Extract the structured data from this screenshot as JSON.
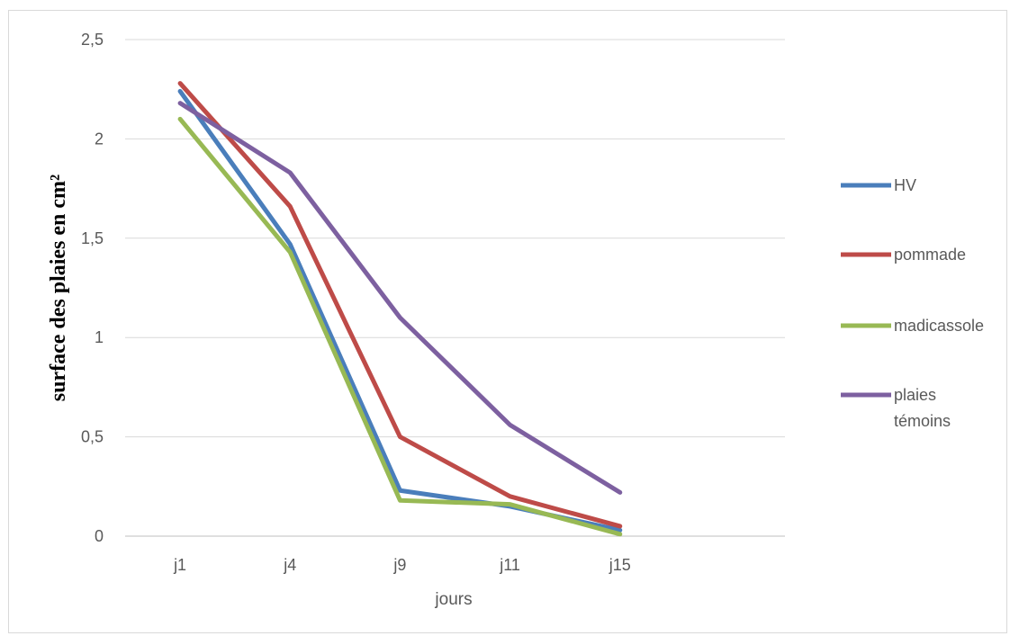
{
  "chart_data": {
    "type": "line",
    "categories": [
      "j1",
      "j4",
      "j9",
      "j11",
      "j15"
    ],
    "series": [
      {
        "name": "HV",
        "color": "#4a7ebb",
        "values": [
          2.24,
          1.47,
          0.23,
          0.15,
          0.03
        ]
      },
      {
        "name": "pommade",
        "color": "#be4b48",
        "values": [
          2.28,
          1.66,
          0.5,
          0.2,
          0.05
        ]
      },
      {
        "name": "madicassole",
        "color": "#98b954",
        "values": [
          2.1,
          1.43,
          0.18,
          0.16,
          0.01
        ]
      },
      {
        "name": "plaies témoins",
        "color": "#7d60a0",
        "values": [
          2.18,
          1.83,
          1.1,
          0.56,
          0.22
        ]
      }
    ],
    "ylim": [
      0,
      2.5
    ],
    "yticks": [
      "0",
      "0,5",
      "1",
      "1,5",
      "2",
      "2,5"
    ],
    "yticks_values": [
      0,
      0.5,
      1,
      1.5,
      2,
      2.5
    ],
    "xlabel": "jours",
    "ylabel": "surface des plaies en cm²",
    "grid": true,
    "legend": "right"
  }
}
